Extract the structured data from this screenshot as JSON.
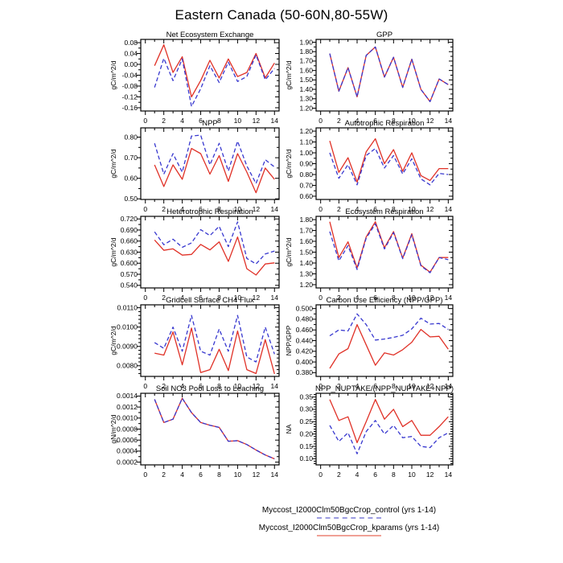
{
  "title": "Eastern Canada (50-60N,80-55W)",
  "colors": {
    "control_line": "#3838cf",
    "kparams_line": "#e03127",
    "legend_control_sample": "#9b9be0",
    "legend_kparams_sample": "#f0a096",
    "axis": "#000000",
    "background": "#ffffff"
  },
  "legend": {
    "position": "below-figure",
    "items": [
      {
        "label": "Myccost_I2000Clm50BgcCrop_control (yrs 1-14)",
        "series": "control",
        "style": "dashed"
      },
      {
        "label": "Myccost_I2000Clm50BgcCrop_kparams (yrs 1-14)",
        "series": "kparams",
        "style": "solid"
      }
    ]
  },
  "chart_data": [
    {
      "id": "nee",
      "type": "line",
      "title": "Net Ecosystem Exchange",
      "ylabel": "gC/m^2/d",
      "grid": false,
      "x": [
        1,
        2,
        3,
        4,
        5,
        6,
        7,
        8,
        9,
        10,
        11,
        12,
        13,
        14
      ],
      "xticks": [
        0,
        2,
        4,
        6,
        8,
        10,
        12,
        14
      ],
      "xlim": [
        -0.5,
        14.5
      ],
      "yticks": [
        0.08,
        0.04,
        0.0,
        -0.04,
        -0.08,
        -0.12,
        -0.16
      ],
      "ylim": [
        -0.172,
        0.092
      ],
      "ydecimals": 2,
      "yminors": 1,
      "series": [
        {
          "name": "control",
          "style": "dashed",
          "values": [
            -0.085,
            0.022,
            -0.06,
            0.02,
            -0.155,
            -0.09,
            -0.005,
            -0.067,
            0.008,
            -0.063,
            -0.045,
            0.035,
            -0.057,
            -0.015
          ]
        },
        {
          "name": "kparams",
          "style": "solid",
          "values": [
            -0.005,
            0.072,
            -0.03,
            0.028,
            -0.12,
            -0.06,
            0.015,
            -0.05,
            0.02,
            -0.045,
            -0.03,
            0.04,
            -0.05,
            0.005
          ]
        }
      ]
    },
    {
      "id": "gpp",
      "type": "line",
      "title": "GPP",
      "ylabel": "gC/m^2/d",
      "grid": false,
      "x": [
        1,
        2,
        3,
        4,
        5,
        6,
        7,
        8,
        9,
        10,
        11,
        12,
        13,
        14
      ],
      "xticks": [
        0,
        2,
        4,
        6,
        8,
        10,
        12,
        14
      ],
      "xlim": [
        -0.5,
        14.5
      ],
      "yticks": [
        1.9,
        1.8,
        1.7,
        1.6,
        1.5,
        1.4,
        1.3,
        1.2
      ],
      "ylim": [
        1.17,
        1.93
      ],
      "ydecimals": 2,
      "yminors": 1,
      "series": [
        {
          "name": "control",
          "style": "dashed",
          "values": [
            1.78,
            1.38,
            1.63,
            1.32,
            1.76,
            1.85,
            1.53,
            1.74,
            1.42,
            1.72,
            1.4,
            1.27,
            1.51,
            1.45
          ]
        },
        {
          "name": "kparams",
          "style": "solid",
          "values": [
            1.78,
            1.38,
            1.63,
            1.32,
            1.76,
            1.85,
            1.53,
            1.74,
            1.42,
            1.72,
            1.4,
            1.27,
            1.51,
            1.45
          ]
        }
      ]
    },
    {
      "id": "npp",
      "type": "line",
      "title": "NPP",
      "ylabel": "gC/m^2/d",
      "grid": false,
      "x": [
        1,
        2,
        3,
        4,
        5,
        6,
        7,
        8,
        9,
        10,
        11,
        12,
        13,
        14
      ],
      "xticks": [
        0,
        2,
        4,
        6,
        8,
        10,
        12,
        14
      ],
      "xlim": [
        -0.5,
        14.5
      ],
      "yticks": [
        0.8,
        0.7,
        0.6,
        0.5
      ],
      "ylim": [
        0.497,
        0.845
      ],
      "ydecimals": 2,
      "yminors": 1,
      "series": [
        {
          "name": "control",
          "style": "dashed",
          "values": [
            0.77,
            0.62,
            0.72,
            0.63,
            0.805,
            0.81,
            0.665,
            0.77,
            0.635,
            0.78,
            0.66,
            0.575,
            0.69,
            0.655
          ]
        },
        {
          "name": "kparams",
          "style": "solid",
          "values": [
            0.665,
            0.56,
            0.665,
            0.595,
            0.745,
            0.72,
            0.62,
            0.71,
            0.585,
            0.72,
            0.63,
            0.53,
            0.65,
            0.595
          ]
        }
      ]
    },
    {
      "id": "ar",
      "type": "line",
      "title": "Autotrophic Respiration",
      "ylabel": "gC/m^2/d",
      "grid": false,
      "x": [
        1,
        2,
        3,
        4,
        5,
        6,
        7,
        8,
        9,
        10,
        11,
        12,
        13,
        14
      ],
      "xticks": [
        0,
        2,
        4,
        6,
        8,
        10,
        12,
        14
      ],
      "xlim": [
        -0.5,
        14.5
      ],
      "yticks": [
        1.2,
        1.1,
        1.0,
        0.9,
        0.8,
        0.7,
        0.6
      ],
      "ylim": [
        0.57,
        1.23
      ],
      "ydecimals": 2,
      "yminors": 1,
      "series": [
        {
          "name": "control",
          "style": "dashed",
          "values": [
            1.0,
            0.765,
            0.89,
            0.705,
            0.975,
            1.04,
            0.86,
            0.975,
            0.805,
            0.945,
            0.76,
            0.705,
            0.81,
            0.8
          ]
        },
        {
          "name": "kparams",
          "style": "solid",
          "values": [
            1.11,
            0.82,
            0.955,
            0.73,
            1.01,
            1.13,
            0.9,
            1.03,
            0.83,
            1.0,
            0.79,
            0.745,
            0.855,
            0.855
          ]
        }
      ]
    },
    {
      "id": "hr",
      "type": "line",
      "title": "Heterotrophic Respiration",
      "ylabel": "gC/m^2/d",
      "grid": false,
      "x": [
        1,
        2,
        3,
        4,
        5,
        6,
        7,
        8,
        9,
        10,
        11,
        12,
        13,
        14
      ],
      "xticks": [
        0,
        2,
        4,
        6,
        8,
        10,
        12,
        14
      ],
      "xlim": [
        -0.5,
        14.5
      ],
      "yticks": [
        0.72,
        0.69,
        0.66,
        0.63,
        0.6,
        0.57,
        0.54
      ],
      "ylim": [
        0.533,
        0.727
      ],
      "ydecimals": 3,
      "yminors": 1,
      "series": [
        {
          "name": "control",
          "style": "dashed",
          "values": [
            0.685,
            0.65,
            0.665,
            0.643,
            0.655,
            0.691,
            0.675,
            0.7,
            0.645,
            0.712,
            0.613,
            0.598,
            0.625,
            0.633
          ]
        },
        {
          "name": "kparams",
          "style": "solid",
          "values": [
            0.663,
            0.635,
            0.639,
            0.622,
            0.624,
            0.651,
            0.636,
            0.658,
            0.605,
            0.671,
            0.585,
            0.568,
            0.598,
            0.601
          ]
        }
      ]
    },
    {
      "id": "er",
      "type": "line",
      "title": "Ecosystem Respiration",
      "ylabel": "gC/m^2/d",
      "grid": false,
      "x": [
        1,
        2,
        3,
        4,
        5,
        6,
        7,
        8,
        9,
        10,
        11,
        12,
        13,
        14
      ],
      "xticks": [
        0,
        2,
        4,
        6,
        8,
        10,
        12,
        14
      ],
      "xlim": [
        -0.5,
        14.5
      ],
      "yticks": [
        1.8,
        1.7,
        1.6,
        1.5,
        1.4,
        1.3,
        1.2
      ],
      "ylim": [
        1.17,
        1.83
      ],
      "ydecimals": 2,
      "yminors": 1,
      "series": [
        {
          "name": "control",
          "style": "dashed",
          "values": [
            1.69,
            1.42,
            1.56,
            1.34,
            1.63,
            1.76,
            1.53,
            1.68,
            1.44,
            1.66,
            1.375,
            1.31,
            1.45,
            1.43
          ]
        },
        {
          "name": "kparams",
          "style": "solid",
          "values": [
            1.78,
            1.45,
            1.595,
            1.355,
            1.64,
            1.78,
            1.54,
            1.69,
            1.445,
            1.67,
            1.38,
            1.315,
            1.45,
            1.45
          ]
        }
      ]
    },
    {
      "id": "ch4",
      "type": "line",
      "title": "Gridcell Surface CH4 Flux",
      "ylabel": "gC/m^2/d",
      "grid": false,
      "x": [
        1,
        2,
        3,
        4,
        5,
        6,
        7,
        8,
        9,
        10,
        11,
        12,
        13,
        14
      ],
      "xticks": [
        0,
        2,
        4,
        6,
        8,
        10,
        12,
        14
      ],
      "xlim": [
        -0.5,
        14.5
      ],
      "yticks": [
        0.011,
        0.01,
        0.009,
        0.008
      ],
      "ylim": [
        0.00745,
        0.01115
      ],
      "ydecimals": 4,
      "yminors": 4,
      "series": [
        {
          "name": "control",
          "style": "dashed",
          "values": [
            0.0092,
            0.0089,
            0.01,
            0.00875,
            0.0106,
            0.00875,
            0.00855,
            0.0099,
            0.00875,
            0.0106,
            0.00845,
            0.0082,
            0.01,
            0.0086
          ]
        },
        {
          "name": "kparams",
          "style": "solid",
          "values": [
            0.00865,
            0.00855,
            0.00975,
            0.00805,
            0.00995,
            0.00765,
            0.0078,
            0.00885,
            0.00775,
            0.0098,
            0.0078,
            0.0076,
            0.00935,
            0.00758
          ]
        }
      ]
    },
    {
      "id": "cue",
      "type": "line",
      "title": "Carbon Use Efficiency (NPP/GPP)",
      "ylabel": "NPP/GPP",
      "grid": false,
      "x": [
        1,
        2,
        3,
        4,
        5,
        6,
        7,
        8,
        9,
        10,
        11,
        12,
        13,
        14
      ],
      "xticks": [
        0,
        2,
        4,
        6,
        8,
        10,
        12,
        14
      ],
      "xlim": [
        -0.5,
        14.5
      ],
      "yticks": [
        0.5,
        0.48,
        0.46,
        0.44,
        0.42,
        0.4,
        0.38
      ],
      "ylim": [
        0.373,
        0.507
      ],
      "ydecimals": 3,
      "yminors": 1,
      "series": [
        {
          "name": "control",
          "style": "dashed",
          "values": [
            0.449,
            0.46,
            0.458,
            0.49,
            0.47,
            0.441,
            0.443,
            0.446,
            0.45,
            0.462,
            0.482,
            0.471,
            0.472,
            0.461
          ]
        },
        {
          "name": "kparams",
          "style": "solid",
          "values": [
            0.388,
            0.415,
            0.425,
            0.47,
            0.432,
            0.394,
            0.417,
            0.413,
            0.423,
            0.437,
            0.461,
            0.447,
            0.448,
            0.424
          ]
        }
      ]
    },
    {
      "id": "no3",
      "type": "line",
      "title": "Soil NO3 Pool Loss to Leaching",
      "ylabel": "gN/m^2/d",
      "grid": false,
      "x": [
        1,
        2,
        3,
        4,
        5,
        6,
        7,
        8,
        9,
        10,
        11,
        12,
        13,
        14
      ],
      "xticks": [
        0,
        2,
        4,
        6,
        8,
        10,
        12,
        14
      ],
      "xlim": [
        -0.5,
        14.5
      ],
      "yticks": [
        0.0014,
        0.0012,
        0.001,
        0.0008,
        0.0006,
        0.0004,
        0.0002
      ],
      "ylim": [
        0.00015,
        0.00145
      ],
      "ydecimals": 4,
      "yminors": 1,
      "series": [
        {
          "name": "control",
          "style": "dashed",
          "values": [
            0.00134,
            0.00092,
            0.00098,
            0.00136,
            0.0011,
            0.00092,
            0.00087,
            0.00083,
            0.00058,
            0.00059,
            0.00052,
            0.00042,
            0.00033,
            0.00026
          ]
        },
        {
          "name": "kparams",
          "style": "solid",
          "values": [
            0.00134,
            0.00092,
            0.00098,
            0.00136,
            0.0011,
            0.00092,
            0.00087,
            0.00083,
            0.00058,
            0.00059,
            0.00052,
            0.00042,
            0.00033,
            0.00026
          ]
        }
      ]
    },
    {
      "id": "nuptake",
      "type": "line",
      "title": "NPP_NUPTAKE/(NPP_NUPTAKE+NPP)",
      "ylabel": "NA",
      "grid": false,
      "x": [
        1,
        2,
        3,
        4,
        5,
        6,
        7,
        8,
        9,
        10,
        11,
        12,
        13,
        14
      ],
      "xticks": [
        0,
        2,
        4,
        6,
        8,
        10,
        12,
        14
      ],
      "xlim": [
        -0.5,
        14.5
      ],
      "yticks": [
        0.35,
        0.3,
        0.25,
        0.2,
        0.15,
        0.1
      ],
      "ylim": [
        0.075,
        0.365
      ],
      "ydecimals": 2,
      "yminors": 4,
      "series": [
        {
          "name": "control",
          "style": "dashed",
          "values": [
            0.235,
            0.17,
            0.205,
            0.12,
            0.21,
            0.255,
            0.2,
            0.235,
            0.185,
            0.19,
            0.15,
            0.145,
            0.185,
            0.205
          ]
        },
        {
          "name": "kparams",
          "style": "solid",
          "values": [
            0.34,
            0.255,
            0.27,
            0.165,
            0.25,
            0.34,
            0.26,
            0.3,
            0.23,
            0.255,
            0.195,
            0.195,
            0.23,
            0.27
          ]
        }
      ]
    }
  ]
}
